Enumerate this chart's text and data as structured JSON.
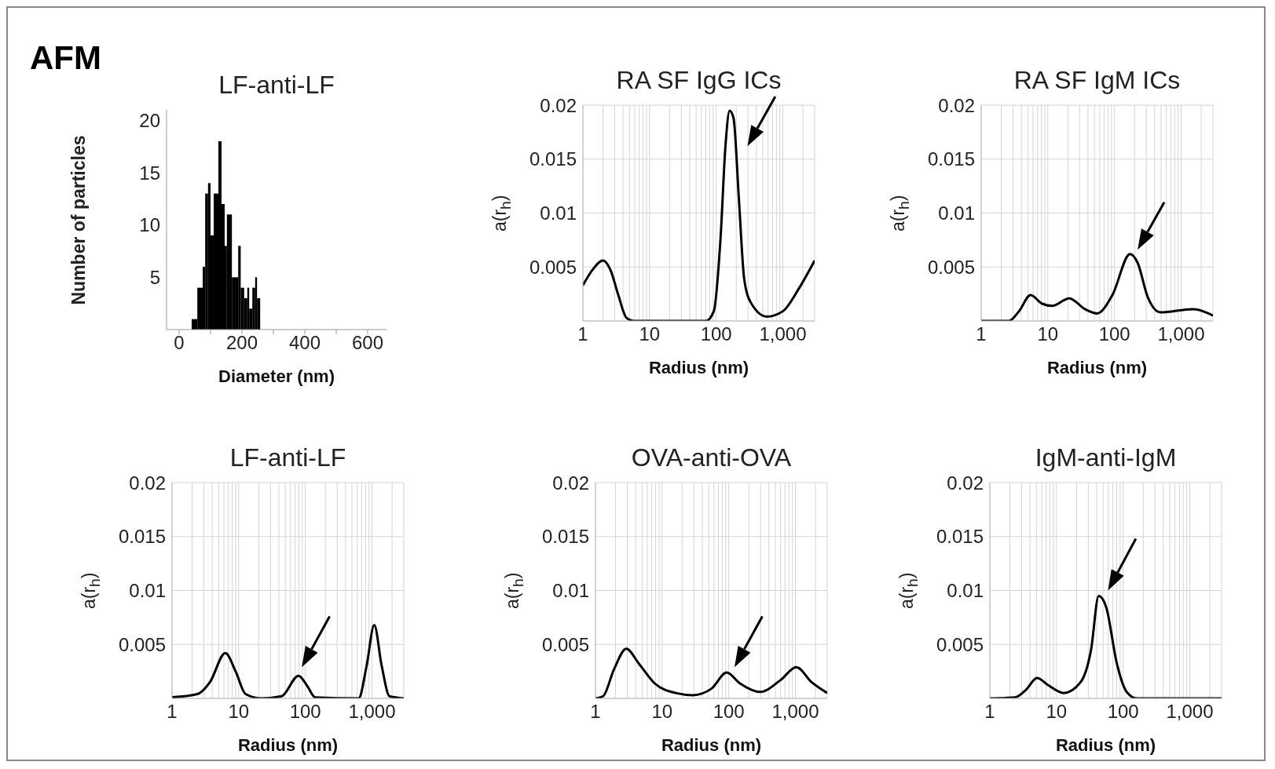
{
  "chart_data": [
    {
      "type": "histogram",
      "title": "LF-anti-LF",
      "xlabel": "Diameter (nm)",
      "ylabel": "Number of particles",
      "annotations": [
        "AFM"
      ],
      "color": "#000000",
      "bins": [
        40,
        58,
        75,
        83,
        92,
        100,
        110,
        125,
        135,
        145,
        152,
        168,
        188,
        196,
        207,
        217,
        223,
        233,
        242,
        248,
        258
      ],
      "values": [
        1,
        4,
        6,
        13,
        14,
        9,
        13,
        18,
        12,
        8,
        11,
        5,
        8,
        4,
        3,
        4,
        2,
        4,
        5,
        3
      ],
      "xlim": [
        -40,
        660
      ],
      "xticks": [
        0,
        {
          "value": 100,
          "label": null
        },
        200,
        {
          "value": 300,
          "label": null
        },
        400,
        {
          "value": 500,
          "label": null
        },
        600
      ],
      "ylim": [
        0,
        21
      ],
      "yticks": [
        5,
        10,
        15,
        20
      ]
    },
    {
      "type": "line",
      "title": "RA SF IgG ICs",
      "xlabel": "Radius (nm)",
      "ylabel": "a(r$_{h}$)",
      "log": "x",
      "grid": true,
      "xlim": [
        1,
        3000
      ],
      "xticks": [
        1,
        {
          "value": 2,
          "label": null
        },
        {
          "value": 3,
          "label": null
        },
        {
          "value": 4,
          "label": null
        },
        {
          "value": 5,
          "label": null
        },
        {
          "value": 6,
          "label": null
        },
        {
          "value": 7,
          "label": null
        },
        {
          "value": 8,
          "label": null
        },
        {
          "value": 9,
          "label": null
        },
        10,
        {
          "value": 20,
          "label": null
        },
        {
          "value": 30,
          "label": null
        },
        {
          "value": 40,
          "label": null
        },
        {
          "value": 50,
          "label": null
        },
        {
          "value": 60,
          "label": null
        },
        {
          "value": 70,
          "label": null
        },
        {
          "value": 80,
          "label": null
        },
        {
          "value": 90,
          "label": null
        },
        100,
        {
          "value": 200,
          "label": null
        },
        {
          "value": 300,
          "label": null
        },
        {
          "value": 400,
          "label": null
        },
        {
          "value": 500,
          "label": null
        },
        {
          "value": 600,
          "label": null
        },
        {
          "value": 700,
          "label": null
        },
        {
          "value": 800,
          "label": null
        },
        {
          "value": 900,
          "label": null
        },
        {
          "value": 1000,
          "label": "1,000"
        },
        {
          "value": 2000,
          "label": null
        }
      ],
      "ylim": [
        0,
        0.02
      ],
      "yticks": [
        0.005,
        0.01,
        0.015,
        0.02
      ],
      "x": [
        1,
        1.38,
        2,
        2.6,
        3.4,
        4.5,
        5.9,
        70,
        92,
        116,
        138,
        159,
        182,
        219,
        263,
        331,
        575,
        1000,
        1700,
        3000
      ],
      "series": [
        {
          "color": "#000000",
          "values": [
            0.0033,
            0.0047,
            0.0056,
            0.0047,
            0.0024,
            0.0003,
            0,
            0,
            0.0009,
            0.0076,
            0.0163,
            0.0195,
            0.0188,
            0.0113,
            0.0039,
            0.0017,
            0.0004,
            0.0009,
            0.0029,
            0.0056
          ]
        }
      ]
    },
    {
      "type": "line",
      "title": "RA SF IgM ICs",
      "xlabel": "Radius (nm)",
      "ylabel": "a(r$_{h}$)",
      "log": "x",
      "grid": true,
      "xlim": [
        1,
        3000
      ],
      "xticks": [
        1,
        {
          "value": 2,
          "label": null
        },
        {
          "value": 3,
          "label": null
        },
        {
          "value": 4,
          "label": null
        },
        {
          "value": 5,
          "label": null
        },
        {
          "value": 6,
          "label": null
        },
        {
          "value": 7,
          "label": null
        },
        {
          "value": 8,
          "label": null
        },
        {
          "value": 9,
          "label": null
        },
        10,
        {
          "value": 20,
          "label": null
        },
        {
          "value": 30,
          "label": null
        },
        {
          "value": 40,
          "label": null
        },
        {
          "value": 50,
          "label": null
        },
        {
          "value": 60,
          "label": null
        },
        {
          "value": 70,
          "label": null
        },
        {
          "value": 80,
          "label": null
        },
        {
          "value": 90,
          "label": null
        },
        100,
        {
          "value": 200,
          "label": null
        },
        {
          "value": 300,
          "label": null
        },
        {
          "value": 400,
          "label": null
        },
        {
          "value": 500,
          "label": null
        },
        {
          "value": 600,
          "label": null
        },
        {
          "value": 700,
          "label": null
        },
        {
          "value": 800,
          "label": null
        },
        {
          "value": 900,
          "label": null
        },
        {
          "value": 1000,
          "label": "1,000"
        },
        {
          "value": 2000,
          "label": null
        }
      ],
      "ylim": [
        0,
        0.02
      ],
      "yticks": [
        0.005,
        0.01,
        0.015,
        0.02
      ],
      "x": [
        1,
        2.6,
        3.7,
        5.5,
        8.2,
        11.6,
        21,
        36,
        55,
        93,
        171,
        222,
        316,
        490,
        1500,
        3000
      ],
      "series": [
        {
          "color": "#000000",
          "values": [
            0,
            0,
            0.0009,
            0.0024,
            0.0016,
            0.0014,
            0.0021,
            0.0011,
            0.0007,
            0.0024,
            0.0062,
            0.0054,
            0.0022,
            0.0008,
            0.0011,
            0.0005
          ]
        }
      ]
    },
    {
      "type": "line",
      "title": "LF-anti-LF",
      "xlabel": "Radius (nm)",
      "ylabel": "a(r$_{h}$)",
      "log": "x",
      "grid": true,
      "xlim": [
        1,
        3000
      ],
      "xticks": [
        1,
        {
          "value": 2,
          "label": null
        },
        {
          "value": 3,
          "label": null
        },
        {
          "value": 4,
          "label": null
        },
        {
          "value": 5,
          "label": null
        },
        {
          "value": 6,
          "label": null
        },
        {
          "value": 7,
          "label": null
        },
        {
          "value": 8,
          "label": null
        },
        {
          "value": 9,
          "label": null
        },
        10,
        {
          "value": 20,
          "label": null
        },
        {
          "value": 30,
          "label": null
        },
        {
          "value": 40,
          "label": null
        },
        {
          "value": 50,
          "label": null
        },
        {
          "value": 60,
          "label": null
        },
        {
          "value": 70,
          "label": null
        },
        {
          "value": 80,
          "label": null
        },
        {
          "value": 90,
          "label": null
        },
        100,
        {
          "value": 200,
          "label": null
        },
        {
          "value": 300,
          "label": null
        },
        {
          "value": 400,
          "label": null
        },
        {
          "value": 500,
          "label": null
        },
        {
          "value": 600,
          "label": null
        },
        {
          "value": 700,
          "label": null
        },
        {
          "value": 800,
          "label": null
        },
        {
          "value": 900,
          "label": null
        },
        {
          "value": 1000,
          "label": "1,000"
        },
        {
          "value": 2000,
          "label": null
        }
      ],
      "ylim": [
        0,
        0.02
      ],
      "yticks": [
        0.005,
        0.01,
        0.015,
        0.02
      ],
      "x": [
        1,
        2.4,
        3.7,
        6.3,
        9,
        12.7,
        22,
        44,
        79,
        108,
        140,
        630,
        830,
        1080,
        1400,
        1830,
        3000
      ],
      "series": [
        {
          "color": "#000000",
          "values": [
            0.0001,
            0.0004,
            0.0015,
            0.0042,
            0.0025,
            0.0004,
            0,
            0.0002,
            0.0021,
            0.0011,
            0.0001,
            0,
            0.003,
            0.0068,
            0.003,
            0.0002,
            0
          ]
        }
      ]
    },
    {
      "type": "line",
      "title": "OVA-anti-OVA",
      "xlabel": "Radius (nm)",
      "ylabel": "a(r$_{h}$)",
      "log": "x",
      "grid": true,
      "xlim": [
        1,
        3000
      ],
      "xticks": [
        1,
        {
          "value": 2,
          "label": null
        },
        {
          "value": 3,
          "label": null
        },
        {
          "value": 4,
          "label": null
        },
        {
          "value": 5,
          "label": null
        },
        {
          "value": 6,
          "label": null
        },
        {
          "value": 7,
          "label": null
        },
        {
          "value": 8,
          "label": null
        },
        {
          "value": 9,
          "label": null
        },
        10,
        {
          "value": 20,
          "label": null
        },
        {
          "value": 30,
          "label": null
        },
        {
          "value": 40,
          "label": null
        },
        {
          "value": 50,
          "label": null
        },
        {
          "value": 60,
          "label": null
        },
        {
          "value": 70,
          "label": null
        },
        {
          "value": 80,
          "label": null
        },
        {
          "value": 90,
          "label": null
        },
        100,
        {
          "value": 200,
          "label": null
        },
        {
          "value": 300,
          "label": null
        },
        {
          "value": 400,
          "label": null
        },
        {
          "value": 500,
          "label": null
        },
        {
          "value": 600,
          "label": null
        },
        {
          "value": 700,
          "label": null
        },
        {
          "value": 800,
          "label": null
        },
        {
          "value": 900,
          "label": null
        },
        {
          "value": 1000,
          "label": "1,000"
        },
        {
          "value": 2000,
          "label": null
        }
      ],
      "ylim": [
        0,
        0.02
      ],
      "yticks": [
        0.005,
        0.01,
        0.015,
        0.02
      ],
      "x": [
        1,
        1.3,
        1.9,
        2.9,
        4.5,
        7.7,
        16,
        29,
        55,
        93,
        146,
        295,
        600,
        1030,
        1750,
        3000
      ],
      "series": [
        {
          "color": "#000000",
          "values": [
            0,
            0.0002,
            0.0027,
            0.0046,
            0.0032,
            0.0014,
            0.0005,
            0.0003,
            0.0009,
            0.0024,
            0.0014,
            0.0006,
            0.0017,
            0.0029,
            0.0015,
            0.0005
          ]
        }
      ]
    },
    {
      "type": "line",
      "title": "IgM-anti-IgM",
      "xlabel": "Radius (nm)",
      "ylabel": "a(r$_{h}$)",
      "log": "x",
      "grid": true,
      "xlim": [
        1,
        3000
      ],
      "xticks": [
        1,
        {
          "value": 2,
          "label": null
        },
        {
          "value": 3,
          "label": null
        },
        {
          "value": 4,
          "label": null
        },
        {
          "value": 5,
          "label": null
        },
        {
          "value": 6,
          "label": null
        },
        {
          "value": 7,
          "label": null
        },
        {
          "value": 8,
          "label": null
        },
        {
          "value": 9,
          "label": null
        },
        10,
        {
          "value": 20,
          "label": null
        },
        {
          "value": 30,
          "label": null
        },
        {
          "value": 40,
          "label": null
        },
        {
          "value": 50,
          "label": null
        },
        {
          "value": 60,
          "label": null
        },
        {
          "value": 70,
          "label": null
        },
        {
          "value": 80,
          "label": null
        },
        {
          "value": 90,
          "label": null
        },
        100,
        {
          "value": 200,
          "label": null
        },
        {
          "value": 300,
          "label": null
        },
        {
          "value": 400,
          "label": null
        },
        {
          "value": 500,
          "label": null
        },
        {
          "value": 600,
          "label": null
        },
        {
          "value": 700,
          "label": null
        },
        {
          "value": 800,
          "label": null
        },
        {
          "value": 900,
          "label": null
        },
        {
          "value": 1000,
          "label": "1,000"
        },
        {
          "value": 2000,
          "label": null
        }
      ],
      "ylim": [
        0,
        0.02
      ],
      "yticks": [
        0.005,
        0.01,
        0.015,
        0.02
      ],
      "x": [
        1,
        2.4,
        3.5,
        5.1,
        7.6,
        12.8,
        23,
        33,
        43,
        56,
        80,
        113,
        160,
        3000
      ],
      "series": [
        {
          "color": "#000000",
          "values": [
            0,
            0.0001,
            0.0008,
            0.0019,
            0.0012,
            0.0005,
            0.0015,
            0.0045,
            0.0095,
            0.0084,
            0.0033,
            0.0006,
            0,
            0
          ]
        }
      ]
    }
  ]
}
